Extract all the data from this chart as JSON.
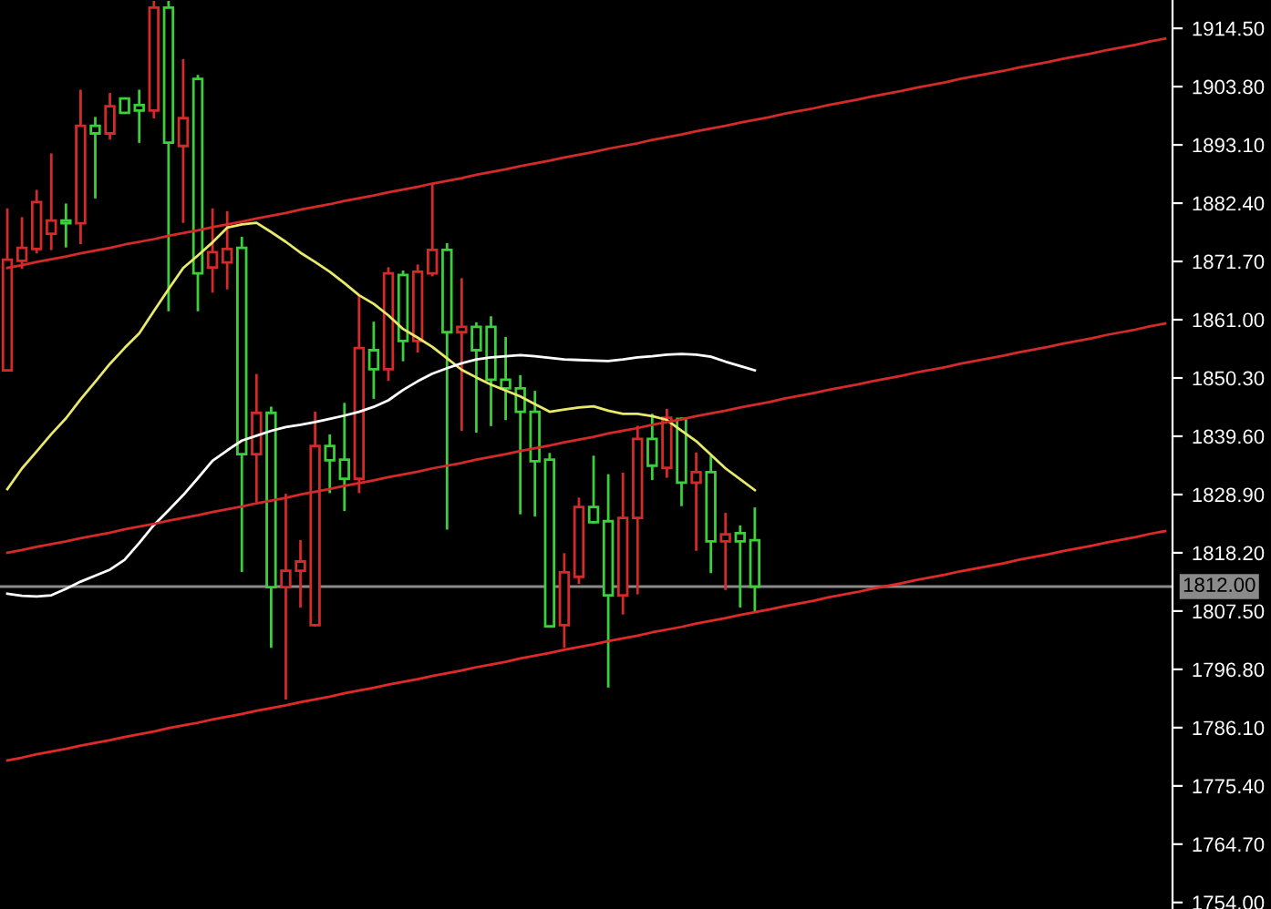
{
  "chart_data": {
    "type": "candlestick",
    "categories": [
      null,
      null,
      null,
      null,
      null,
      null,
      null,
      null,
      null,
      null,
      null,
      null,
      null,
      null,
      null,
      null,
      null,
      null,
      null,
      null,
      null,
      null,
      null,
      null,
      null,
      null,
      null,
      null,
      null,
      null,
      null,
      null,
      null,
      null,
      null,
      null,
      null,
      null,
      null,
      null,
      null,
      null,
      null,
      null,
      null,
      null,
      null,
      null,
      null,
      null,
      null,
      null,
      null,
      null,
      null,
      null,
      null,
      null,
      null,
      null,
      null,
      null,
      null,
      null,
      null,
      null,
      null,
      null,
      null,
      null,
      null,
      null,
      null,
      null,
      null,
      null,
      null,
      null,
      null,
      null
    ],
    "ohlc": [
      [
        1851.7,
        1881.2,
        1851.7,
        1872.0
      ],
      [
        1871.8,
        1879.6,
        1870.6,
        1874.2
      ],
      [
        1874.0,
        1884.6,
        1873.4,
        1882.6
      ],
      [
        1876.8,
        1891.3,
        1874.0,
        1879.2
      ],
      [
        1879.2,
        1882.1,
        1874.5,
        1878.7
      ],
      [
        1878.7,
        1903.0,
        1875.1,
        1896.6
      ],
      [
        1896.6,
        1898.0,
        1883.5,
        1895.2
      ],
      [
        1895.2,
        1902.4,
        1894.3,
        1900.2
      ],
      [
        1901.6,
        1901.6,
        1899.0,
        1899.0
      ],
      [
        1900.4,
        1903.0,
        1893.7,
        1899.4
      ],
      [
        1899.4,
        1919.3,
        1898.2,
        1918.3
      ],
      [
        1918.3,
        1919.3,
        1862.8,
        1893.5
      ],
      [
        1892.9,
        1908.6,
        1879.0,
        1898.0
      ],
      [
        1905.2,
        1905.7,
        1862.8,
        1869.5
      ],
      [
        1870.6,
        1881.2,
        1866.2,
        1873.4
      ],
      [
        1871.5,
        1880.7,
        1866.8,
        1874.0
      ],
      [
        1874.2,
        1876.0,
        1814.9,
        1836.3
      ],
      [
        1836.3,
        1850.8,
        1827.7,
        1843.9
      ],
      [
        1843.9,
        1844.8,
        1801.0,
        1811.9
      ],
      [
        1811.9,
        1828.8,
        1791.5,
        1814.9
      ],
      [
        1814.9,
        1820.3,
        1808.4,
        1816.6
      ],
      [
        1804.9,
        1843.9,
        1804.9,
        1837.8
      ],
      [
        1837.8,
        1839.7,
        1829.4,
        1835.2
      ],
      [
        1835.3,
        1845.5,
        1826.1,
        1831.8
      ],
      [
        1831.8,
        1865.3,
        1829.4,
        1855.8
      ],
      [
        1855.4,
        1860.4,
        1846.7,
        1851.9
      ],
      [
        1851.9,
        1870.4,
        1850.0,
        1869.5
      ],
      [
        1869.2,
        1869.8,
        1853.6,
        1857.1
      ],
      [
        1857.1,
        1870.9,
        1855.2,
        1869.8
      ],
      [
        1869.5,
        1885.7,
        1869.2,
        1873.8
      ],
      [
        1873.8,
        1874.8,
        1822.7,
        1858.7
      ],
      [
        1858.7,
        1868.4,
        1840.8,
        1859.7
      ],
      [
        1859.7,
        1860.3,
        1840.5,
        1855.4
      ],
      [
        1859.7,
        1861.4,
        1841.7,
        1850.0
      ],
      [
        1850.0,
        1857.6,
        1842.8,
        1848.4
      ],
      [
        1848.4,
        1850.6,
        1825.5,
        1844.1
      ],
      [
        1844.1,
        1847.7,
        1825.1,
        1835.0
      ],
      [
        1835.3,
        1836.3,
        1804.7,
        1804.7
      ],
      [
        1804.9,
        1817.9,
        1801.0,
        1814.6
      ],
      [
        1813.8,
        1828.1,
        1812.7,
        1826.6
      ],
      [
        1826.6,
        1835.8,
        1823.8,
        1823.8
      ],
      [
        1824.0,
        1832.4,
        1793.7,
        1810.4
      ],
      [
        1810.4,
        1832.7,
        1807.1,
        1824.6
      ],
      [
        1824.6,
        1841.3,
        1810.8,
        1839.1
      ],
      [
        1839.1,
        1843.5,
        1831.8,
        1834.2
      ],
      [
        1833.8,
        1844.4,
        1832.2,
        1843.0
      ],
      [
        1842.8,
        1842.8,
        1827.0,
        1831.1
      ],
      [
        1831.1,
        1836.4,
        1818.8,
        1833.0
      ],
      [
        1833.0,
        1835.8,
        1814.7,
        1820.3
      ],
      [
        1820.3,
        1825.3,
        1811.6,
        1821.6
      ],
      [
        1821.8,
        1823.0,
        1808.4,
        1820.3
      ],
      [
        1820.5,
        1826.3,
        1807.4,
        1812.0
      ],
      null,
      null,
      null,
      null,
      null,
      null,
      null,
      null,
      null,
      null,
      null,
      null,
      null,
      null,
      null,
      null,
      null,
      null,
      null,
      null,
      null,
      null,
      null,
      null,
      null,
      null,
      null,
      null
    ],
    "colors": [
      "#d42a2a",
      "#d42a2a",
      "#d42a2a",
      "#d42a2a",
      "#3ccf3c",
      "#d42a2a",
      "#3ccf3c",
      "#d42a2a",
      "#3ccf3c",
      "#3ccf3c",
      "#d42a2a",
      "#3ccf3c",
      "#d42a2a",
      "#3ccf3c",
      "#d42a2a",
      "#d42a2a",
      "#3ccf3c",
      "#d42a2a",
      "#3ccf3c",
      "#d42a2a",
      "#d42a2a",
      "#d42a2a",
      "#3ccf3c",
      "#3ccf3c",
      "#d42a2a",
      "#3ccf3c",
      "#d42a2a",
      "#3ccf3c",
      "#d42a2a",
      "#d42a2a",
      "#3ccf3c",
      "#d42a2a",
      "#3ccf3c",
      "#3ccf3c",
      "#3ccf3c",
      "#3ccf3c",
      "#3ccf3c",
      "#3ccf3c",
      "#d42a2a",
      "#d42a2a",
      "#3ccf3c",
      "#3ccf3c",
      "#d42a2a",
      "#d42a2a",
      "#3ccf3c",
      "#d42a2a",
      "#3ccf3c",
      "#d42a2a",
      "#3ccf3c",
      "#d42a2a",
      "#3ccf3c",
      "#3ccf3c",
      null,
      null,
      null,
      null,
      null,
      null,
      null,
      null,
      null,
      null,
      null,
      null,
      null,
      null,
      null,
      null,
      null,
      null,
      null,
      null,
      null,
      null,
      null,
      null,
      null,
      null,
      null,
      null
    ],
    "series": [
      {
        "type": "line",
        "color": "#e8e86a",
        "values": [
          1829.9,
          1833.7,
          1836.8,
          1840.0,
          1842.9,
          1846.4,
          1849.6,
          1852.9,
          1855.8,
          1858.5,
          1862.6,
          1866.6,
          1870.5,
          1872.8,
          1875.2,
          1877.9,
          1878.5,
          1878.8,
          1877.1,
          1875.3,
          1873.3,
          1871.6,
          1869.8,
          1867.7,
          1865.5,
          1863.9,
          1861.8,
          1859.3,
          1857.7,
          1856.0,
          1853.9,
          1851.8,
          1850.4,
          1849.1,
          1848.0,
          1846.9,
          1845.5,
          1844.1,
          1844.5,
          1844.9,
          1845.1,
          1844.3,
          1843.7,
          1843.7,
          1843.3,
          1842.6,
          1840.6,
          1838.7,
          1836.2,
          1833.7,
          1831.7,
          1829.7,
          null,
          null,
          null,
          null,
          null,
          null,
          null,
          null,
          null,
          null,
          null,
          null,
          null,
          null,
          null,
          null,
          null,
          null,
          null,
          null,
          null,
          null,
          null,
          null,
          null,
          null,
          null,
          null
        ]
      },
      {
        "type": "line",
        "color": "#ffffff",
        "values": [
          1810.7,
          1810.3,
          1810.2,
          1810.4,
          1811.6,
          1812.9,
          1814.0,
          1815.1,
          1816.9,
          1820.0,
          1823.3,
          1826.0,
          1828.8,
          1831.9,
          1835.1,
          1837.0,
          1838.8,
          1839.7,
          1840.6,
          1841.3,
          1841.7,
          1842.2,
          1842.8,
          1843.4,
          1844.1,
          1845.0,
          1846.2,
          1848.1,
          1849.7,
          1851.1,
          1852.1,
          1853.0,
          1853.7,
          1854.1,
          1854.3,
          1854.5,
          1854.3,
          1854.0,
          1853.7,
          1853.6,
          1853.5,
          1853.4,
          1853.7,
          1854.1,
          1854.3,
          1854.6,
          1854.7,
          1854.6,
          1854.2,
          1853.3,
          1852.5,
          1851.7,
          null,
          null,
          null,
          null,
          null,
          null,
          null,
          null,
          null,
          null,
          null,
          null,
          null,
          null,
          null,
          null,
          null,
          null,
          null,
          null,
          null,
          null,
          null,
          null,
          null,
          null,
          null,
          null
        ]
      },
      {
        "type": "line",
        "color": "#d42a2a",
        "values": [
          1870.5,
          1871.0,
          1871.6,
          1872.1,
          1872.6,
          1873.2,
          1873.7,
          1874.2,
          1874.8,
          1875.3,
          1875.8,
          1876.4,
          1876.9,
          1877.4,
          1878.0,
          1878.5,
          1879.0,
          1879.6,
          1880.1,
          1880.6,
          1881.2,
          1881.7,
          1882.2,
          1882.8,
          1883.3,
          1883.8,
          1884.4,
          1884.9,
          1885.4,
          1886.0,
          1886.5,
          1887.0,
          1887.6,
          1888.1,
          1888.6,
          1889.2,
          1889.7,
          1890.2,
          1890.8,
          1891.3,
          1891.8,
          1892.4,
          1892.9,
          1893.4,
          1894.0,
          1894.5,
          1895.0,
          1895.6,
          1896.1,
          1896.6,
          1897.2,
          1897.7,
          1898.2,
          1898.8,
          1899.3,
          1899.8,
          1900.4,
          1900.9,
          1901.4,
          1902.0,
          1902.5,
          1903.0,
          1903.6,
          1904.1,
          1904.6,
          1905.2,
          1905.7,
          1906.2,
          1906.7,
          1907.3,
          1907.8,
          1908.3,
          1908.9,
          1909.4,
          1909.9,
          1910.5,
          1911.0,
          1911.5,
          1912.1,
          1912.6
        ]
      },
      {
        "type": "line",
        "color": "#d42a2a",
        "values": [
          1818.2,
          1818.7,
          1819.3,
          1819.8,
          1820.3,
          1820.9,
          1821.4,
          1821.9,
          1822.5,
          1823.0,
          1823.5,
          1824.1,
          1824.6,
          1825.1,
          1825.7,
          1826.2,
          1826.7,
          1827.3,
          1827.8,
          1828.3,
          1828.9,
          1829.4,
          1829.9,
          1830.5,
          1831.0,
          1831.5,
          1832.1,
          1832.6,
          1833.1,
          1833.7,
          1834.2,
          1834.7,
          1835.3,
          1835.8,
          1836.3,
          1836.9,
          1837.4,
          1837.9,
          1838.5,
          1839.0,
          1839.5,
          1840.1,
          1840.6,
          1841.1,
          1841.7,
          1842.2,
          1842.7,
          1843.3,
          1843.8,
          1844.3,
          1844.9,
          1845.4,
          1845.9,
          1846.5,
          1847.0,
          1847.5,
          1848.1,
          1848.6,
          1849.1,
          1849.7,
          1850.2,
          1850.7,
          1851.3,
          1851.8,
          1852.3,
          1852.9,
          1853.4,
          1853.9,
          1854.4,
          1855.0,
          1855.5,
          1856.0,
          1856.6,
          1857.1,
          1857.6,
          1858.2,
          1858.7,
          1859.2,
          1859.8,
          1860.3
        ]
      },
      {
        "type": "line",
        "color": "#e02a2a",
        "values": [
          1780.1,
          1780.6,
          1781.2,
          1781.7,
          1782.2,
          1782.8,
          1783.3,
          1783.8,
          1784.4,
          1784.9,
          1785.4,
          1786.0,
          1786.5,
          1787.0,
          1787.6,
          1788.1,
          1788.6,
          1789.2,
          1789.7,
          1790.2,
          1790.8,
          1791.3,
          1791.8,
          1792.4,
          1792.9,
          1793.4,
          1794.0,
          1794.5,
          1795.0,
          1795.6,
          1796.1,
          1796.6,
          1797.2,
          1797.7,
          1798.2,
          1798.8,
          1799.3,
          1799.8,
          1800.4,
          1800.9,
          1801.4,
          1802.0,
          1802.5,
          1803.0,
          1803.6,
          1804.1,
          1804.6,
          1805.2,
          1805.7,
          1806.2,
          1806.8,
          1807.3,
          1807.8,
          1808.4,
          1808.9,
          1809.4,
          1810.0,
          1810.5,
          1811.0,
          1811.6,
          1812.1,
          1812.6,
          1813.2,
          1813.7,
          1814.2,
          1814.8,
          1815.3,
          1815.8,
          1816.3,
          1816.9,
          1817.4,
          1817.9,
          1818.5,
          1819.0,
          1819.5,
          1820.1,
          1820.6,
          1821.1,
          1821.7,
          1822.2
        ]
      }
    ],
    "ref_lines": [
      {
        "axis": "y",
        "value": 1812.0,
        "label": "1812.00",
        "color": "#8a8a8a"
      }
    ],
    "ylim": [
      1752.8,
      1919.7
    ],
    "yticks": [
      {
        "value": 1914.5,
        "label": "1914.50"
      },
      {
        "value": 1903.8,
        "label": "1903.80"
      },
      {
        "value": 1893.1,
        "label": "1893.10"
      },
      {
        "value": 1882.4,
        "label": "1882.40"
      },
      {
        "value": 1871.7,
        "label": "1871.70"
      },
      {
        "value": 1861.0,
        "label": "1861.00"
      },
      {
        "value": 1850.3,
        "label": "1850.30"
      },
      {
        "value": 1839.6,
        "label": "1839.60"
      },
      {
        "value": 1828.9,
        "label": "1828.90"
      },
      {
        "value": 1818.2,
        "label": "1818.20"
      },
      {
        "value": 1807.5,
        "label": "1807.50"
      },
      {
        "value": 1796.8,
        "label": "1796.80"
      },
      {
        "value": 1786.1,
        "label": "1786.10"
      },
      {
        "value": 1775.4,
        "label": "1775.40"
      },
      {
        "value": 1764.7,
        "label": "1764.70"
      },
      {
        "value": 1754.0,
        "label": "1754.00"
      }
    ],
    "tick_labels": "y"
  }
}
